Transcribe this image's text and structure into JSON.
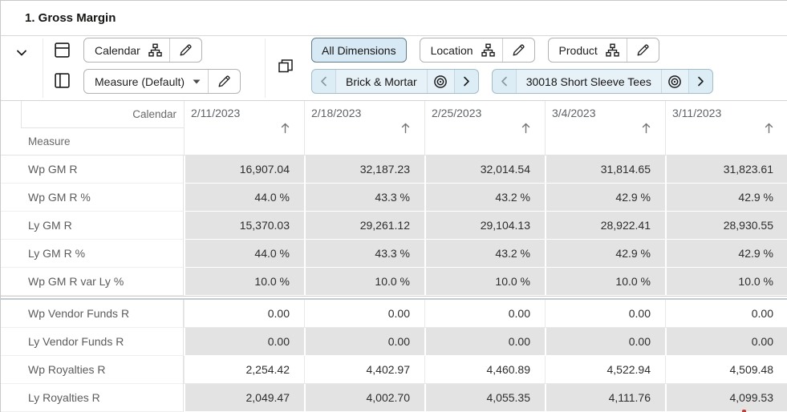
{
  "title": "1. Gross Margin",
  "toolbar": {
    "collapse_tooltip": "collapse",
    "row_axis_tile": {
      "label": "Calendar"
    },
    "col_axis_tile": {
      "label": "Measure (Default)"
    },
    "all_dimensions_label": "All Dimensions",
    "page_dimension_tiles": [
      {
        "label": "Location"
      },
      {
        "label": "Product"
      }
    ],
    "page_slice_tiles": [
      {
        "label": "Brick & Mortar"
      },
      {
        "label": "30018 Short Sleeve Tees"
      }
    ]
  },
  "grid": {
    "column_dimension_label": "Calendar",
    "row_dimension_label": "Measure",
    "column_headers": [
      "2/11/2023",
      "2/18/2023",
      "2/25/2023",
      "3/4/2023",
      "3/11/2023"
    ],
    "sort_direction": "ascending",
    "rows": [
      {
        "label": "Wp GM R",
        "editable": false,
        "values": [
          "16,907.04",
          "32,187.23",
          "32,014.54",
          "31,814.65",
          "31,823.61"
        ]
      },
      {
        "label": "Wp GM R %",
        "editable": false,
        "values": [
          "44.0 %",
          "43.3 %",
          "43.2 %",
          "42.9 %",
          "42.9 %"
        ]
      },
      {
        "label": "Ly GM R",
        "editable": false,
        "values": [
          "15,370.03",
          "29,261.12",
          "29,104.13",
          "28,922.41",
          "28,930.55"
        ]
      },
      {
        "label": "Ly GM R %",
        "editable": false,
        "values": [
          "44.0 %",
          "43.3 %",
          "43.2 %",
          "42.9 %",
          "42.9 %"
        ]
      },
      {
        "label": "Wp GM R var Ly %",
        "editable": false,
        "values": [
          "10.0 %",
          "10.0 %",
          "10.0 %",
          "10.0 %",
          "10.0 %"
        ],
        "group_end": true
      },
      {
        "label": "Wp Vendor Funds R",
        "editable": true,
        "values": [
          "0.00",
          "0.00",
          "0.00",
          "0.00",
          "0.00"
        ]
      },
      {
        "label": "Ly Vendor Funds R",
        "editable": false,
        "values": [
          "0.00",
          "0.00",
          "0.00",
          "0.00",
          "0.00"
        ]
      },
      {
        "label": "Wp Royalties R",
        "editable": true,
        "values": [
          "2,254.42",
          "4,402.97",
          "4,460.89",
          "4,522.94",
          "4,509.48"
        ]
      },
      {
        "label": "Ly Royalties R",
        "editable": false,
        "values": [
          "2,049.47",
          "4,002.70",
          "4,055.35",
          "4,111.76",
          "4,099.53"
        ]
      }
    ]
  },
  "icons": {
    "collapse": "chevron-down",
    "rows_axis": "split-horizontal-square",
    "columns_axis": "split-vertical-square",
    "page_axis": "overlapping-squares",
    "dimension": "hierarchy",
    "edit": "pencil",
    "dropdown": "caret-down",
    "sort": "arrow-up",
    "slice_scope": "bullseye",
    "slice_prev": "chevron-left",
    "slice_next": "chevron-right"
  },
  "colors": {
    "readonly_cell_bg": "#e3e3e3",
    "editable_cell_bg": "#ffffff",
    "tile_bg": "#dcedf6",
    "tile_border": "#a0bdcc",
    "selected_chip_bg": "#d7e9f4",
    "selected_chip_border": "#5f7d8c",
    "alert_red": "#d0342c"
  }
}
